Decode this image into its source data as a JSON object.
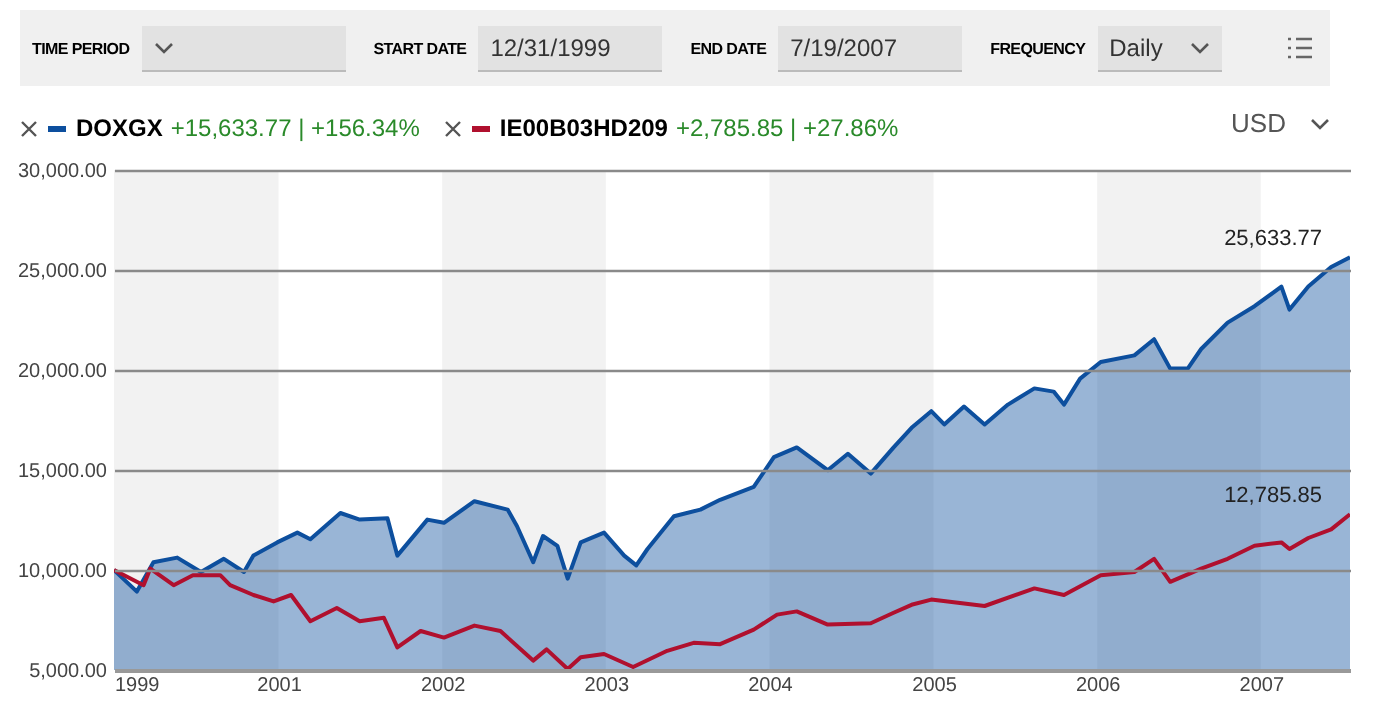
{
  "chart_data": {
    "type": "line",
    "annotations": [
      "TIME PERIOD",
      "START DATE",
      "12/31/1999",
      "END DATE",
      "7/19/2007",
      "FREQUENCY",
      "Daily",
      "+15,633.77 | +156.34%",
      "+2,785.85 | +27.86%",
      "USD",
      {
        "text": "25,633.77",
        "x": "2007-07-19",
        "y": 25633.77
      },
      {
        "text": "12,785.85",
        "x": "2007-07-19",
        "y": 12785.85
      }
    ],
    "legend": "top left",
    "grid": "y",
    "xlim": [
      "1999-12-31",
      "2007-07-19"
    ],
    "xticks": [
      {
        "value": "1999-12-31",
        "label": "1999"
      },
      {
        "value": "2001-01-01",
        "label": "2001"
      },
      {
        "value": "2002-01-01",
        "label": "2002"
      },
      {
        "value": "2003-01-01",
        "label": "2003"
      },
      {
        "value": "2004-01-01",
        "label": "2004"
      },
      {
        "value": "2005-01-01",
        "label": "2005"
      },
      {
        "value": "2006-01-01",
        "label": "2006"
      },
      {
        "value": "2007-01-01",
        "label": "2007"
      }
    ],
    "ylim": [
      5000,
      30000
    ],
    "yticks": [
      {
        "value": 5000,
        "label": "5,000.00"
      },
      {
        "value": 10000,
        "label": "10,000.00"
      },
      {
        "value": 15000,
        "label": "15,000.00"
      },
      {
        "value": 20000,
        "label": "20,000.00"
      },
      {
        "value": 25000,
        "label": "25,000.00"
      },
      {
        "value": 30000,
        "label": "30,000.00"
      }
    ],
    "bands": [
      {
        "axis": "x",
        "from": "1999-12-31",
        "to": "2001-01-01",
        "color": "#f2f2f2"
      },
      {
        "axis": "x",
        "from": "2002-01-01",
        "to": "2003-01-01",
        "color": "#f2f2f2"
      },
      {
        "axis": "x",
        "from": "2004-01-01",
        "to": "2005-01-01",
        "color": "#f2f2f2"
      },
      {
        "axis": "x",
        "from": "2006-01-01",
        "to": "2007-01-01",
        "color": "#f2f2f2"
      }
    ],
    "series": [
      {
        "name": "DOXGX",
        "type": "area",
        "color": "#0d4f9e",
        "x": [
          "1999-12-31",
          "2000-02-20",
          "2000-03-28",
          "2000-05-20",
          "2000-07-12",
          "2000-09-01",
          "2000-10-16",
          "2000-11-06",
          "2000-12-29",
          "2001-02-12",
          "2001-03-13",
          "2001-05-19",
          "2001-07-01",
          "2001-09-01",
          "2001-09-23",
          "2001-11-29",
          "2002-01-05",
          "2002-03-14",
          "2002-05-27",
          "2002-06-17",
          "2002-07-23",
          "2002-08-14",
          "2002-09-15",
          "2002-10-08",
          "2002-11-06",
          "2002-12-28",
          "2003-02-11",
          "2003-03-10",
          "2003-04-04",
          "2003-06-02",
          "2003-07-31",
          "2003-09-13",
          "2003-11-27",
          "2004-01-11",
          "2004-03-02",
          "2004-05-10",
          "2004-06-24",
          "2004-08-14",
          "2004-10-04",
          "2004-11-13",
          "2004-12-27",
          "2005-01-25",
          "2005-03-10",
          "2005-04-25",
          "2005-06-16",
          "2005-08-14",
          "2005-09-26",
          "2005-10-19",
          "2005-11-24",
          "2006-01-09",
          "2006-03-25",
          "2006-05-08",
          "2006-06-13",
          "2006-07-22",
          "2006-08-21",
          "2006-10-19",
          "2006-12-18",
          "2007-02-16",
          "2007-03-06",
          "2007-04-17",
          "2007-06-07",
          "2007-07-19"
        ],
        "values": [
          10000,
          8920,
          10390,
          10620,
          9900,
          10560,
          9900,
          10720,
          11380,
          11870,
          11540,
          12850,
          12520,
          12590,
          10720,
          12520,
          12360,
          13440,
          13020,
          12190,
          10390,
          11700,
          11210,
          9570,
          11380,
          11870,
          10720,
          10230,
          11050,
          12690,
          13020,
          13510,
          14160,
          15640,
          16130,
          14990,
          15810,
          14820,
          16130,
          17110,
          17940,
          17280,
          18170,
          17280,
          18270,
          19080,
          18920,
          18270,
          19570,
          20400,
          20730,
          21540,
          20070,
          20070,
          21050,
          22370,
          23190,
          24170,
          23020,
          24170,
          25150,
          25633.77
        ]
      },
      {
        "name": "IE00B03HD209",
        "type": "line",
        "color": "#b0102e",
        "x": [
          "1999-12-31",
          "2000-03-06",
          "2000-03-21",
          "2000-05-12",
          "2000-06-24",
          "2000-08-24",
          "2000-09-15",
          "2000-11-06",
          "2000-12-21",
          "2001-01-29",
          "2001-03-13",
          "2001-05-11",
          "2001-07-01",
          "2001-08-24",
          "2001-09-23",
          "2001-11-14",
          "2002-01-05",
          "2002-03-14",
          "2002-05-11",
          "2002-07-23",
          "2002-08-22",
          "2002-10-08",
          "2002-11-06",
          "2002-12-28",
          "2003-03-03",
          "2003-05-18",
          "2003-07-16",
          "2003-09-13",
          "2003-11-27",
          "2004-01-18",
          "2004-03-02",
          "2004-05-10",
          "2004-08-14",
          "2004-10-04",
          "2004-11-13",
          "2004-12-27",
          "2005-04-25",
          "2005-08-14",
          "2005-10-19",
          "2006-01-09",
          "2006-03-25",
          "2006-05-08",
          "2006-06-13",
          "2006-08-21",
          "2006-10-19",
          "2006-12-18",
          "2007-02-16",
          "2007-03-06",
          "2007-04-17",
          "2007-06-07",
          "2007-07-19"
        ],
        "values": [
          10000,
          9240,
          10070,
          9240,
          9740,
          9740,
          9240,
          8750,
          8430,
          8750,
          7440,
          8100,
          7440,
          7610,
          6130,
          6950,
          6620,
          7220,
          6950,
          5470,
          6030,
          5050,
          5640,
          5800,
          5150,
          5960,
          6360,
          6290,
          7020,
          7770,
          7930,
          7270,
          7340,
          7860,
          8260,
          8520,
          8200,
          9080,
          8750,
          9740,
          9900,
          10560,
          9410,
          10070,
          10560,
          11210,
          11380,
          11050,
          11600,
          12030,
          12785.85
        ]
      }
    ]
  }
}
